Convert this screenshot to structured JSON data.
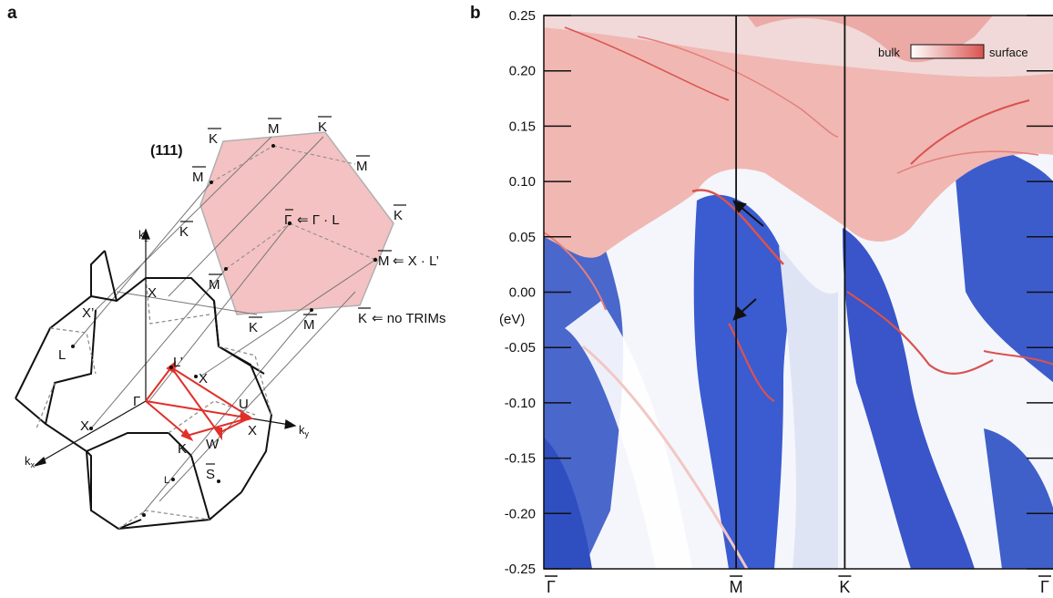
{
  "panel_a": {
    "letter": "a",
    "surface_label": "(111)",
    "labels": {
      "K": "K",
      "M": "M",
      "Gamma": "Γ",
      "X": "X",
      "X_prime": "X’",
      "L": "L",
      "L_prime": "L’",
      "U": "U",
      "W": "W",
      "S": "S",
      "kz": "k",
      "kz_sub": "z",
      "ky": "k",
      "ky_sub": "y",
      "kx": "k",
      "kx_sub": "x"
    },
    "annotations": {
      "gamma_proj": "⇐ Γ · L",
      "m_proj": "⇐ X · L’",
      "k_proj": "⇐ no TRIMs"
    },
    "colors": {
      "surface_bz": "#f4c2c2",
      "path_arrows": "#e0302a"
    }
  },
  "panel_b": {
    "letter": "b",
    "legend": {
      "left": "bulk",
      "right": "surface"
    },
    "colors": {
      "bulk": "#ffffff",
      "surface": "#d9534f",
      "bulk_gap": "#3f5fc9"
    }
  },
  "chart_data": {
    "type": "heatmap",
    "title": "",
    "ylabel": "(eV)",
    "ylim": [
      -0.25,
      0.25
    ],
    "y_ticks": [
      "0.25",
      "0.20",
      "0.15",
      "0.10",
      "0.05",
      "0.00",
      "-0.05",
      "-0.10",
      "-0.15",
      "-0.20",
      "-0.25"
    ],
    "x_ticks": [
      {
        "label": "Γ",
        "pos": 0.0
      },
      {
        "label": "M",
        "pos": 0.377
      },
      {
        "label": "K",
        "pos": 0.59
      },
      {
        "label": "Γ",
        "pos": 1.0
      }
    ],
    "arrows_at_energy": [
      0.08,
      -0.025
    ]
  }
}
